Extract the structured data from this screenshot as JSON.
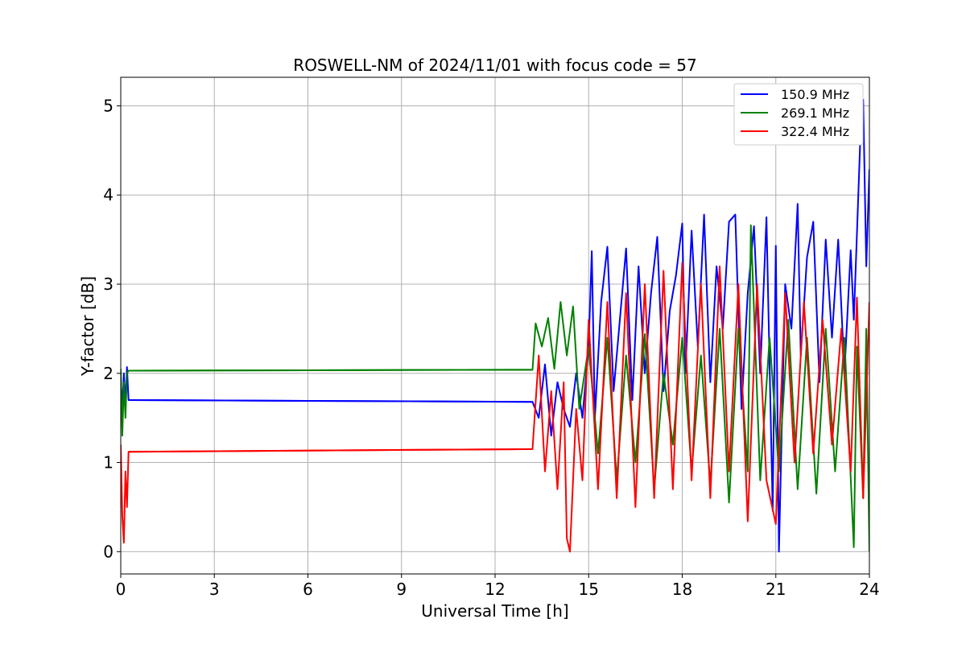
{
  "chart_data": {
    "type": "line",
    "title": "ROSWELL-NM of 2024/11/01 with focus code = 57",
    "xlabel": "Universal Time [h]",
    "ylabel": "Y-factor [dB]",
    "xlim": [
      0,
      24
    ],
    "ylim": [
      -0.25,
      5.32
    ],
    "x_ticks": [
      "0",
      "3",
      "6",
      "9",
      "12",
      "15",
      "18",
      "21",
      "24"
    ],
    "y_ticks": [
      "0",
      "1",
      "2",
      "3",
      "4",
      "5"
    ],
    "grid": true,
    "legend_position": "top-right",
    "series": [
      {
        "name": "150.9 MHz",
        "color": "#0000ff",
        "baseline_segment": {
          "x": [
            0.25,
            13.2
          ],
          "y": [
            1.7,
            1.68
          ]
        },
        "x": [
          0,
          0.05,
          0.1,
          0.15,
          0.2,
          0.25,
          13.2,
          13.4,
          13.6,
          13.8,
          14.0,
          14.2,
          14.4,
          14.6,
          14.8,
          15.0,
          15.1,
          15.2,
          15.4,
          15.6,
          15.8,
          16.0,
          16.2,
          16.4,
          16.6,
          16.8,
          17.0,
          17.2,
          17.4,
          17.6,
          17.8,
          18.0,
          18.1,
          18.3,
          18.5,
          18.7,
          18.9,
          19.1,
          19.3,
          19.5,
          19.7,
          19.9,
          20.1,
          20.3,
          20.5,
          20.7,
          20.9,
          21.0,
          21.1,
          21.3,
          21.5,
          21.7,
          21.8,
          22.0,
          22.2,
          22.4,
          22.6,
          22.8,
          23.0,
          23.2,
          23.4,
          23.5,
          23.6,
          23.7,
          23.8,
          23.9,
          24.0
        ],
        "y": [
          1.95,
          1.6,
          2.0,
          1.65,
          2.07,
          1.7,
          1.68,
          1.5,
          2.1,
          1.3,
          1.9,
          1.6,
          1.4,
          2.0,
          1.5,
          2.3,
          3.37,
          1.5,
          2.8,
          3.42,
          1.8,
          2.6,
          3.4,
          1.7,
          3.2,
          2.0,
          2.9,
          3.53,
          1.8,
          2.7,
          3.1,
          3.68,
          2.0,
          3.6,
          2.3,
          3.78,
          1.9,
          3.2,
          2.5,
          3.7,
          3.78,
          1.6,
          2.9,
          3.65,
          2.0,
          3.75,
          0.46,
          3.43,
          0.0,
          3.0,
          2.5,
          3.9,
          2.2,
          3.3,
          3.7,
          1.9,
          3.5,
          2.4,
          3.5,
          2.0,
          3.38,
          2.6,
          3.56,
          4.55,
          5.07,
          3.2,
          4.29
        ]
      },
      {
        "name": "269.1 MHz",
        "color": "#008000",
        "baseline_segment": {
          "x": [
            0.25,
            13.2
          ],
          "y": [
            2.03,
            2.04
          ]
        },
        "x": [
          0,
          0.05,
          0.1,
          0.15,
          0.2,
          0.25,
          13.2,
          13.3,
          13.5,
          13.7,
          13.9,
          14.1,
          14.3,
          14.5,
          14.7,
          15.0,
          15.3,
          15.6,
          15.9,
          16.2,
          16.5,
          16.8,
          17.1,
          17.4,
          17.7,
          18.0,
          18.3,
          18.6,
          18.9,
          19.2,
          19.5,
          19.8,
          20.1,
          20.2,
          20.5,
          20.8,
          21.1,
          21.4,
          21.7,
          22.0,
          22.3,
          22.6,
          22.9,
          23.2,
          23.5,
          23.6,
          23.8,
          23.9,
          24.0
        ],
        "y": [
          2.05,
          1.3,
          1.9,
          1.5,
          2.0,
          2.03,
          2.04,
          2.56,
          2.3,
          2.62,
          2.05,
          2.8,
          2.2,
          2.75,
          1.6,
          2.3,
          1.1,
          2.4,
          0.8,
          2.2,
          1.0,
          2.44,
          0.7,
          2.0,
          1.2,
          2.4,
          0.9,
          2.2,
          0.75,
          2.5,
          0.55,
          2.5,
          0.9,
          3.66,
          0.8,
          2.4,
          0.9,
          2.6,
          0.7,
          2.4,
          0.65,
          2.5,
          0.9,
          2.4,
          0.05,
          2.3,
          0.6,
          2.5,
          0.0
        ]
      },
      {
        "name": "322.4 MHz",
        "color": "#ff0000",
        "baseline_segment": {
          "x": [
            0.25,
            13.2
          ],
          "y": [
            1.12,
            1.15
          ]
        },
        "x": [
          0,
          0.05,
          0.1,
          0.15,
          0.2,
          0.25,
          13.2,
          13.4,
          13.6,
          13.8,
          14.0,
          14.2,
          14.3,
          14.4,
          14.6,
          14.8,
          15.0,
          15.3,
          15.6,
          15.9,
          16.2,
          16.5,
          16.8,
          17.1,
          17.4,
          17.7,
          18.0,
          18.3,
          18.6,
          18.9,
          19.2,
          19.5,
          19.8,
          20.1,
          20.4,
          20.7,
          21.0,
          21.3,
          21.6,
          21.9,
          22.2,
          22.5,
          22.8,
          23.1,
          23.4,
          23.6,
          23.8,
          24.0
        ],
        "y": [
          1.2,
          0.4,
          0.1,
          0.9,
          0.5,
          1.12,
          1.15,
          2.2,
          0.9,
          1.8,
          0.7,
          1.9,
          0.15,
          0.0,
          1.6,
          0.8,
          2.6,
          0.7,
          2.8,
          0.6,
          2.9,
          0.5,
          3.0,
          0.6,
          3.15,
          0.7,
          3.24,
          0.8,
          3.0,
          0.6,
          3.2,
          0.9,
          3.0,
          0.34,
          3.0,
          0.8,
          0.31,
          2.9,
          1.0,
          2.8,
          1.1,
          2.6,
          1.2,
          2.5,
          0.9,
          2.85,
          0.6,
          2.8
        ]
      }
    ]
  }
}
